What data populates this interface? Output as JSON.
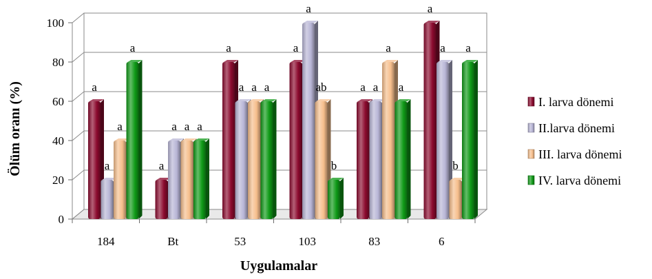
{
  "chart_data": {
    "type": "bar",
    "title": "",
    "xlabel": "Uygulamalar",
    "ylabel": "Ölüm oranı (%)",
    "ylim": [
      0,
      100
    ],
    "yticks": [
      "0",
      "20",
      "40",
      "60",
      "80",
      "100"
    ],
    "grid": true,
    "legend_position": "right",
    "categories": [
      "184",
      "Bt",
      "53",
      "103",
      "83",
      "6"
    ],
    "series": [
      {
        "name": "I. larva dönemi",
        "color": "#8B0A2E",
        "values": [
          60,
          20,
          80,
          80,
          60,
          100
        ],
        "labels": [
          "a",
          "a",
          "a",
          "a",
          "a",
          "a"
        ]
      },
      {
        "name": "II.larva dönemi",
        "color": "#B8B5D6",
        "values": [
          20,
          40,
          60,
          100,
          60,
          80
        ],
        "labels": [
          "a",
          "a",
          "a",
          "a",
          "a",
          "a"
        ]
      },
      {
        "name": "III. larva dönemi",
        "color": "#F6BE8C",
        "values": [
          40,
          40,
          60,
          60,
          80,
          20
        ],
        "labels": [
          "a",
          "a",
          "a",
          "ab",
          "a",
          "b"
        ]
      },
      {
        "name": "IV. larva dönemi",
        "color": "#0F9A17",
        "values": [
          80,
          40,
          60,
          20,
          60,
          80
        ],
        "labels": [
          "a",
          "a",
          "a",
          "b",
          "a",
          "a"
        ]
      }
    ]
  }
}
